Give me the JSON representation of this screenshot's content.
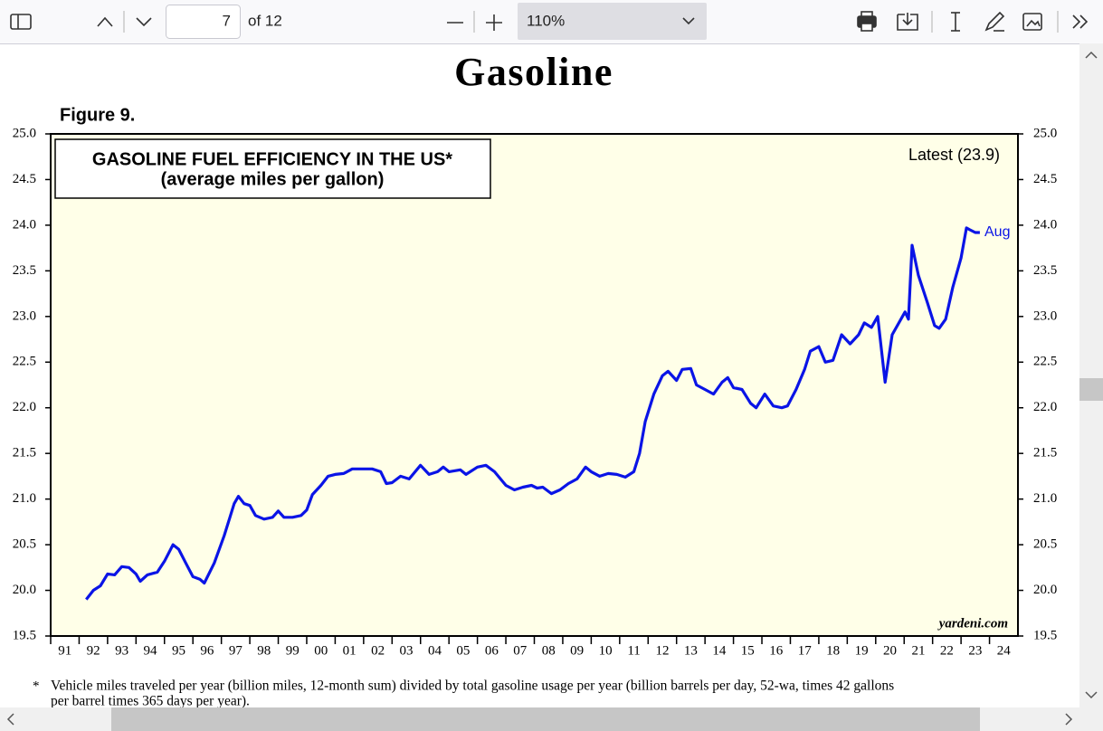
{
  "toolbar": {
    "page_number": "7",
    "page_count": "of 12",
    "zoom": "110%"
  },
  "page": {
    "heading": "Gasoline",
    "figure_label": "Figure 9.",
    "footnote_mark": "*",
    "footnote": [
      "Vehicle miles traveled per year (billion miles, 12-month sum) divided by total gasoline usage per year (billion barrels per day, 52-wa, times 42 gallons",
      "per barrel times 365 days per year)."
    ]
  },
  "chart_data": {
    "type": "line",
    "title": [
      "GASOLINE FUEL EFFICIENCY IN THE US*",
      "(average miles per gallon)"
    ],
    "annotations": {
      "latest": "Latest (23.9)",
      "last_month": "Aug",
      "source": "yardeni.com"
    },
    "xlim": [
      1991,
      2025
    ],
    "xticks": [
      {
        "value": 1991,
        "label": "91"
      },
      {
        "value": 1992,
        "label": "92"
      },
      {
        "value": 1993,
        "label": "93"
      },
      {
        "value": 1994,
        "label": "94"
      },
      {
        "value": 1995,
        "label": "95"
      },
      {
        "value": 1996,
        "label": "96"
      },
      {
        "value": 1997,
        "label": "97"
      },
      {
        "value": 1998,
        "label": "98"
      },
      {
        "value": 1999,
        "label": "99"
      },
      {
        "value": 2000,
        "label": "00"
      },
      {
        "value": 2001,
        "label": "01"
      },
      {
        "value": 2002,
        "label": "02"
      },
      {
        "value": 2003,
        "label": "03"
      },
      {
        "value": 2004,
        "label": "04"
      },
      {
        "value": 2005,
        "label": "05"
      },
      {
        "value": 2006,
        "label": "06"
      },
      {
        "value": 2007,
        "label": "07"
      },
      {
        "value": 2008,
        "label": "08"
      },
      {
        "value": 2009,
        "label": "09"
      },
      {
        "value": 2010,
        "label": "10"
      },
      {
        "value": 2011,
        "label": "11"
      },
      {
        "value": 2012,
        "label": "12"
      },
      {
        "value": 2013,
        "label": "13"
      },
      {
        "value": 2014,
        "label": "14"
      },
      {
        "value": 2015,
        "label": "15"
      },
      {
        "value": 2016,
        "label": "16"
      },
      {
        "value": 2017,
        "label": "17"
      },
      {
        "value": 2018,
        "label": "18"
      },
      {
        "value": 2019,
        "label": "19"
      },
      {
        "value": 2020,
        "label": "20"
      },
      {
        "value": 2021,
        "label": "21"
      },
      {
        "value": 2022,
        "label": "22"
      },
      {
        "value": 2023,
        "label": "23"
      },
      {
        "value": 2024,
        "label": "24"
      }
    ],
    "ylim": [
      19.5,
      25
    ],
    "yticks": [
      19.5,
      {
        "value": 20,
        "label": "20.0"
      },
      20.5,
      {
        "value": 21,
        "label": "21.0"
      },
      21.5,
      {
        "value": 22,
        "label": "22.0"
      },
      22.5,
      {
        "value": 23,
        "label": "23.0"
      },
      23.5,
      {
        "value": 24,
        "label": "24.0"
      },
      24.5,
      {
        "value": 25,
        "label": "25.0"
      }
    ],
    "right_axis": true,
    "series": [
      {
        "color": "#0a14e6",
        "x": [
          1992.25,
          1992.5,
          1992.75,
          1993.0,
          1993.25,
          1993.5,
          1993.75,
          1994.0,
          1994.15,
          1994.4,
          1994.75,
          1995.0,
          1995.3,
          1995.5,
          1995.75,
          1996.0,
          1996.25,
          1996.4,
          1996.75,
          1997.1,
          1997.3,
          1997.45,
          1997.6,
          1997.8,
          1998.0,
          1998.2,
          1998.5,
          1998.8,
          1999.0,
          1999.2,
          1999.5,
          1999.8,
          2000.0,
          2000.2,
          2000.5,
          2000.75,
          2001.0,
          2001.3,
          2001.6,
          2002.0,
          2002.3,
          2002.6,
          2002.8,
          2003.0,
          2003.3,
          2003.6,
          2004.0,
          2004.3,
          2004.6,
          2004.8,
          2005.0,
          2005.4,
          2005.6,
          2006.0,
          2006.3,
          2006.6,
          2007.0,
          2007.3,
          2007.6,
          2007.9,
          2008.1,
          2008.3,
          2008.6,
          2008.9,
          2009.2,
          2009.5,
          2009.8,
          2010.0,
          2010.3,
          2010.6,
          2010.9,
          2011.2,
          2011.5,
          2011.7,
          2011.9,
          2012.2,
          2012.5,
          2012.7,
          2013.0,
          2013.2,
          2013.5,
          2013.7,
          2014.0,
          2014.3,
          2014.6,
          2014.8,
          2015.0,
          2015.3,
          2015.6,
          2015.8,
          2016.1,
          2016.4,
          2016.7,
          2016.9,
          2017.2,
          2017.5,
          2017.7,
          2018.0,
          2018.23,
          2018.5,
          2018.8,
          2019.1,
          2019.4,
          2019.6,
          2019.85,
          2020.07,
          2020.33,
          2020.58,
          2021.03,
          2021.15,
          2021.28,
          2021.5,
          2021.82,
          2022.07,
          2022.23,
          2022.46,
          2022.71,
          2023.0,
          2023.19,
          2023.31,
          2023.5,
          2023.66
        ],
        "values": [
          19.9,
          20.0,
          20.05,
          20.18,
          20.17,
          20.26,
          20.25,
          20.18,
          20.1,
          20.17,
          20.2,
          20.32,
          20.5,
          20.45,
          20.3,
          20.15,
          20.12,
          20.08,
          20.3,
          20.6,
          20.8,
          20.95,
          21.03,
          20.95,
          20.93,
          20.82,
          20.78,
          20.8,
          20.87,
          20.8,
          20.8,
          20.82,
          20.88,
          21.05,
          21.15,
          21.25,
          21.27,
          21.28,
          21.33,
          21.33,
          21.33,
          21.3,
          21.17,
          21.18,
          21.25,
          21.22,
          21.37,
          21.27,
          21.3,
          21.35,
          21.3,
          21.32,
          21.27,
          21.35,
          21.37,
          21.3,
          21.15,
          21.1,
          21.13,
          21.15,
          21.12,
          21.13,
          21.06,
          21.1,
          21.17,
          21.22,
          21.35,
          21.3,
          21.25,
          21.28,
          21.27,
          21.24,
          21.3,
          21.5,
          21.85,
          22.15,
          22.35,
          22.4,
          22.3,
          22.42,
          22.43,
          22.25,
          22.2,
          22.15,
          22.28,
          22.33,
          22.22,
          22.2,
          22.05,
          22.0,
          22.15,
          22.02,
          22.0,
          22.02,
          22.2,
          22.42,
          22.62,
          22.67,
          22.5,
          22.52,
          22.8,
          22.7,
          22.8,
          22.93,
          22.88,
          23.0,
          22.28,
          22.8,
          23.05,
          22.97,
          23.78,
          23.45,
          23.15,
          22.9,
          22.87,
          22.97,
          23.32,
          23.64,
          23.97,
          23.95,
          23.92,
          23.92
        ]
      }
    ]
  }
}
